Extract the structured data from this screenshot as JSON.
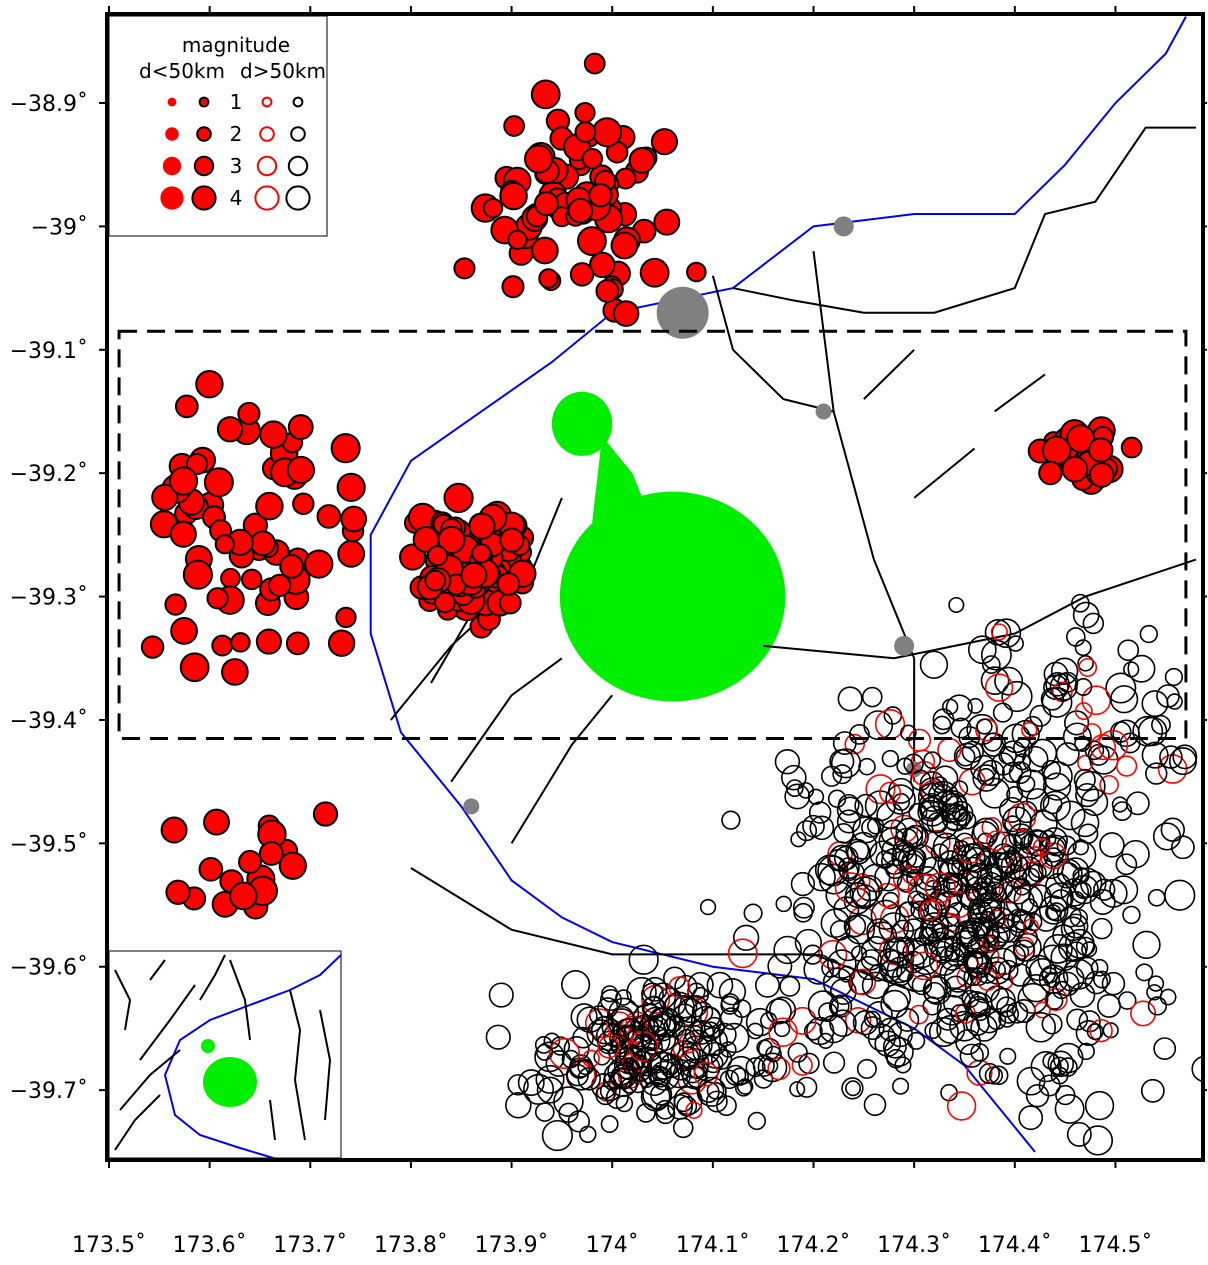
{
  "map": {
    "x_axis": {
      "min": 173.5,
      "max": 174.585,
      "ticks": [
        {
          "value": 173.5,
          "label": "173.5˚"
        },
        {
          "value": 173.6,
          "label": "173.6˚"
        },
        {
          "value": 173.7,
          "label": "173.7˚"
        },
        {
          "value": 173.8,
          "label": "173.8˚"
        },
        {
          "value": 173.9,
          "label": "173.9˚"
        },
        {
          "value": 174.0,
          "label": "174˚"
        },
        {
          "value": 174.1,
          "label": "174.1˚"
        },
        {
          "value": 174.2,
          "label": "174.2˚"
        },
        {
          "value": 174.3,
          "label": "174.3˚"
        },
        {
          "value": 174.4,
          "label": "174.4˚"
        },
        {
          "value": 174.5,
          "label": "174.5˚"
        }
      ]
    },
    "y_axis": {
      "min": -39.755,
      "max": -38.8295,
      "ticks": [
        {
          "value": -38.9,
          "label": "−38.9˚"
        },
        {
          "value": -39.0,
          "label": "−39˚"
        },
        {
          "value": -39.1,
          "label": "−39.1˚"
        },
        {
          "value": -39.2,
          "label": "−39.2˚"
        },
        {
          "value": -39.3,
          "label": "−39.3˚"
        },
        {
          "value": -39.4,
          "label": "−39.4˚"
        },
        {
          "value": -39.5,
          "label": "−39.5˚"
        },
        {
          "value": -39.6,
          "label": "−39.6˚"
        },
        {
          "value": -39.7,
          "label": "−39.7˚"
        }
      ]
    },
    "study_area_box": {
      "lon_min": 173.51,
      "lon_max": 174.57,
      "lat_min": -39.415,
      "lat_max": -39.085
    },
    "colors": {
      "shallow": "#ff0000",
      "deep": "#000000",
      "volcano": "#00ee00",
      "coastline": "#0000ff",
      "faults": "#000000",
      "towns": "#808080"
    }
  },
  "legend": {
    "title": "magnitude",
    "col_shallow": "d<50km",
    "col_deep": "d>50km",
    "rows": [
      {
        "label": "1",
        "magnitude": 1
      },
      {
        "label": "2",
        "magnitude": 2
      },
      {
        "label": "3",
        "magnitude": 3
      },
      {
        "label": "4",
        "magnitude": 4
      }
    ]
  },
  "volcanoes": [
    {
      "name_hidden": "",
      "lon": 174.06,
      "lat": -39.3,
      "radius_deg_lon": 0.112,
      "radius_deg_lat": 0.085
    },
    {
      "name_hidden": "",
      "lon": 173.97,
      "lat": -39.16,
      "radius_deg_lon": 0.03,
      "radius_deg_lat": 0.026
    }
  ],
  "events": {
    "shallow_clusters": [
      {
        "lon": 173.86,
        "lat": -39.27,
        "spread_lon": 0.07,
        "spread_lat": 0.05,
        "count": 110
      },
      {
        "lon": 173.96,
        "lat": -38.98,
        "spread_lon": 0.1,
        "spread_lat": 0.09,
        "count": 85
      },
      {
        "lon": 173.66,
        "lat": -39.25,
        "spread_lon": 0.13,
        "spread_lat": 0.14,
        "count": 70
      },
      {
        "lon": 174.47,
        "lat": -39.19,
        "spread_lon": 0.05,
        "spread_lat": 0.025,
        "count": 30
      },
      {
        "lon": 173.65,
        "lat": -39.52,
        "spread_lon": 0.1,
        "spread_lat": 0.07,
        "count": 18
      }
    ],
    "deep_clusters": [
      {
        "lon": 174.35,
        "lat": -39.55,
        "spread_lon": 0.19,
        "spread_lat": 0.16,
        "count": 620
      },
      {
        "lon": 174.05,
        "lat": -39.67,
        "spread_lon": 0.14,
        "spread_lat": 0.06,
        "count": 230
      },
      {
        "lon": 174.45,
        "lat": -39.38,
        "spread_lon": 0.12,
        "spread_lat": 0.08,
        "count": 70
      }
    ]
  }
}
